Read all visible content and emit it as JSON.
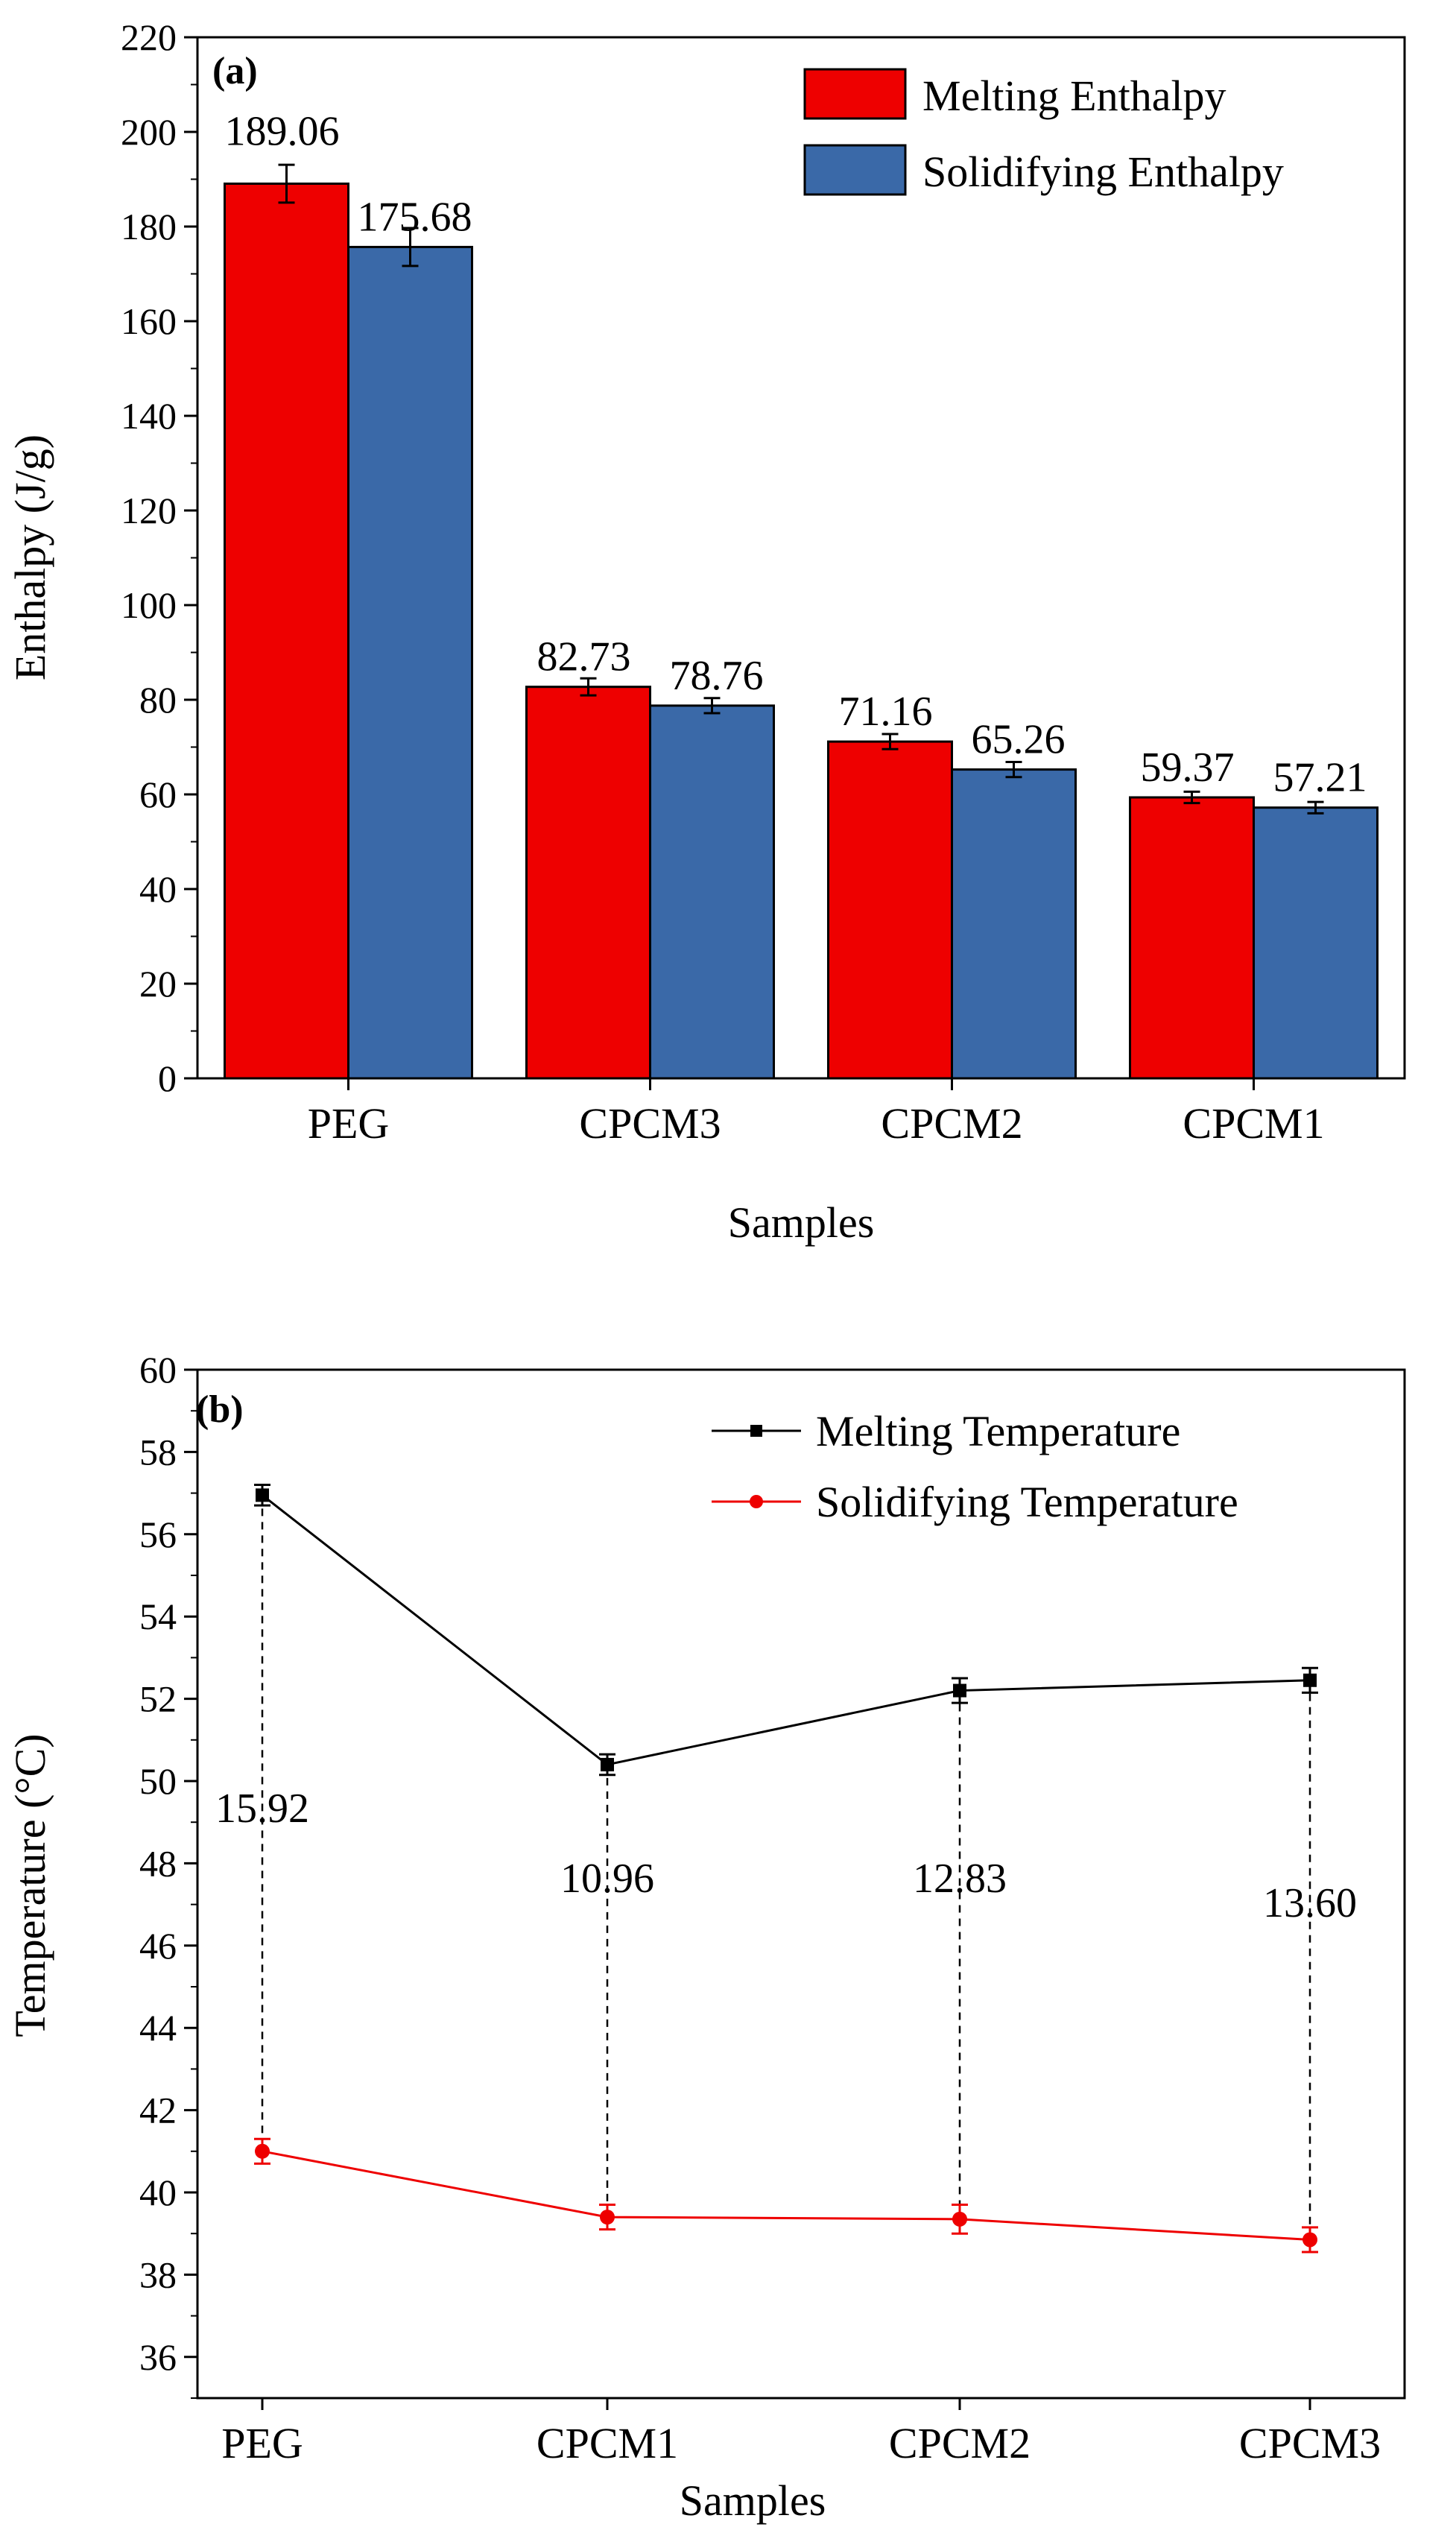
{
  "chart_data": [
    {
      "type": "bar",
      "panel_label": "(a)",
      "categories": [
        "PEG",
        "CPCM3",
        "CPCM2",
        "CPCM1"
      ],
      "series": [
        {
          "name": "Melting Enthalpy",
          "values": [
            189.06,
            82.73,
            71.16,
            59.37
          ],
          "labels": [
            "189.06",
            "82.73",
            "71.16",
            "59.37"
          ],
          "errors": [
            4.0,
            1.8,
            1.6,
            1.2
          ],
          "color": "#ee0000"
        },
        {
          "name": "Solidifying Enthalpy",
          "values": [
            175.68,
            78.76,
            65.26,
            57.21
          ],
          "labels": [
            "175.68",
            "78.76",
            "65.26",
            "57.21"
          ],
          "errors": [
            4.0,
            1.6,
            1.6,
            1.2
          ],
          "color": "#3a69a8"
        }
      ],
      "xlabel": "Samples",
      "ylabel": "Enthalpy (J/g)",
      "ylim": [
        0,
        220
      ],
      "yticks": [
        0,
        20,
        40,
        60,
        80,
        100,
        120,
        140,
        160,
        180,
        200,
        220
      ],
      "legend_position": "top-right",
      "grid": false
    },
    {
      "type": "line",
      "panel_label": "(b)",
      "categories": [
        "PEG",
        "CPCM1",
        "CPCM2",
        "CPCM3"
      ],
      "series": [
        {
          "name": "Melting Temperature",
          "values": [
            56.95,
            50.4,
            52.2,
            52.45
          ],
          "errors": [
            0.25,
            0.25,
            0.3,
            0.3
          ],
          "color": "#000000",
          "marker": "square"
        },
        {
          "name": "Solidifying Temperature",
          "values": [
            41.0,
            39.4,
            39.35,
            38.85
          ],
          "errors": [
            0.3,
            0.3,
            0.35,
            0.3
          ],
          "color": "#ee0000",
          "marker": "circle"
        }
      ],
      "annotations": [
        "15.92",
        "10.96",
        "12.83",
        "13.60"
      ],
      "annotation_y": [
        49.0,
        47.3,
        47.3,
        46.7
      ],
      "xlabel": "Samples",
      "ylabel": "Temperature (°C)",
      "ylim": [
        35,
        60
      ],
      "yticks": [
        36,
        38,
        40,
        42,
        44,
        46,
        48,
        50,
        52,
        54,
        56,
        58,
        60
      ],
      "legend_position": "top-right",
      "grid": false
    }
  ]
}
